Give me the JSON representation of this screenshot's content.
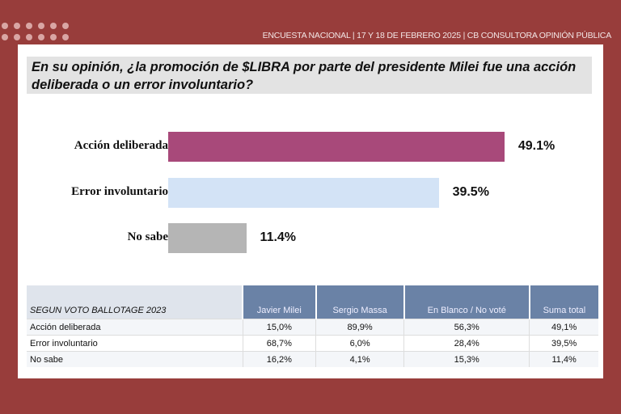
{
  "header": "ENCUESTA NACIONAL  | 17 Y 18 DE FEBRERO 2025 | CB CONSULTORA OPINIÓN PÚBLICA",
  "question": "En su opinión, ¿la promoción de $LIBRA por parte del presidente Milei fue una acción deliberada o un error involuntario?",
  "chart_data": {
    "type": "bar",
    "orientation": "horizontal",
    "categories": [
      "Acción deliberada",
      "Error involuntario",
      "No sabe"
    ],
    "values": [
      49.1,
      39.5,
      11.4
    ],
    "labels": [
      "49.1%",
      "39.5%",
      "11.4%"
    ],
    "colors": [
      "#a8497a",
      "#d3e3f6",
      "#b5b5b5"
    ],
    "grid": false
  },
  "table": {
    "headers": [
      "SEGUN VOTO BALLOTAGE 2023",
      "Javier Milei",
      "Sergio Massa",
      "En Blanco / No voté",
      "Suma total"
    ],
    "rows": [
      [
        "Acción deliberada",
        "15,0%",
        "89,9%",
        "56,3%",
        "49,1%"
      ],
      [
        "Error involuntario",
        "68,7%",
        "6,0%",
        "28,4%",
        "39,5%"
      ],
      [
        "No sabe",
        "16,2%",
        "4,1%",
        "15,3%",
        "11,4%"
      ]
    ]
  }
}
